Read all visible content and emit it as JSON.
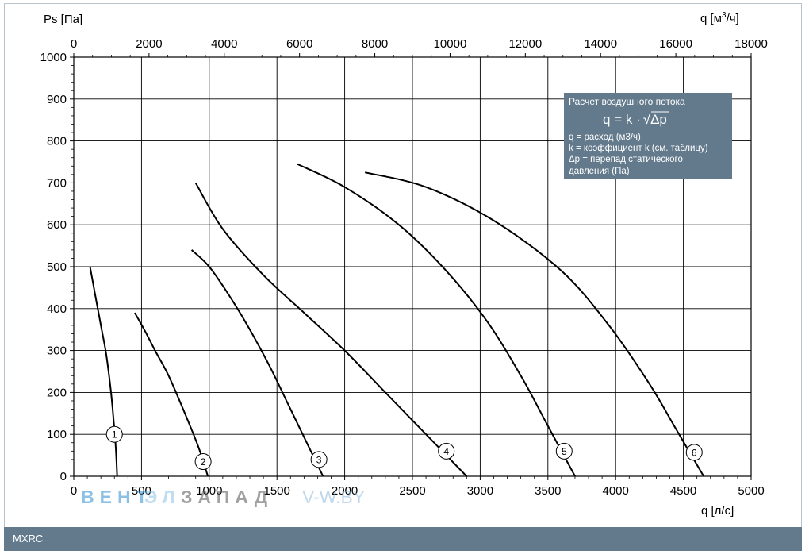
{
  "footer": {
    "model": "MXRC"
  },
  "chart_data": {
    "type": "line",
    "ylabel": "Ps [Па]",
    "xlabel": "q [л/с]",
    "x2label_main": "q [м",
    "x2label_sup": "3",
    "x2label_end": "/ч]",
    "xlim": [
      0,
      5000
    ],
    "ylim": [
      0,
      1000
    ],
    "x2lim": [
      0,
      18000
    ],
    "grid": true,
    "x_ticks": [
      "0",
      "500",
      "1000",
      "1500",
      "2000",
      "2500",
      "3000",
      "3500",
      "4000",
      "4500",
      "5000"
    ],
    "y_ticks": [
      "0",
      "100",
      "200",
      "300",
      "400",
      "500",
      "600",
      "700",
      "800",
      "900",
      "1000"
    ],
    "x2_ticks": [
      "0",
      "2000",
      "4000",
      "6000",
      "8000",
      "10000",
      "12000",
      "14000",
      "16000",
      "18000"
    ],
    "line_color": "#000000",
    "series": [
      {
        "name": "1",
        "points": [
          [
            120,
            500
          ],
          [
            160,
            430
          ],
          [
            200,
            360
          ],
          [
            240,
            290
          ],
          [
            275,
            200
          ],
          [
            295,
            130
          ],
          [
            310,
            70
          ],
          [
            320,
            0
          ]
        ],
        "label_at": [
          300,
          100
        ]
      },
      {
        "name": "2",
        "points": [
          [
            450,
            390
          ],
          [
            520,
            350
          ],
          [
            600,
            300
          ],
          [
            700,
            240
          ],
          [
            820,
            150
          ],
          [
            920,
            70
          ],
          [
            990,
            0
          ]
        ],
        "label_at": [
          955,
          35
        ]
      },
      {
        "name": "3",
        "points": [
          [
            870,
            540
          ],
          [
            1000,
            500
          ],
          [
            1150,
            430
          ],
          [
            1300,
            350
          ],
          [
            1450,
            260
          ],
          [
            1600,
            160
          ],
          [
            1750,
            60
          ],
          [
            1840,
            0
          ]
        ],
        "label_at": [
          1810,
          40
        ]
      },
      {
        "name": "4",
        "points": [
          [
            900,
            700
          ],
          [
            1100,
            590
          ],
          [
            1400,
            480
          ],
          [
            1700,
            390
          ],
          [
            2000,
            300
          ],
          [
            2300,
            200
          ],
          [
            2600,
            100
          ],
          [
            2900,
            0
          ]
        ],
        "label_at": [
          2750,
          60
        ]
      },
      {
        "name": "5",
        "points": [
          [
            1650,
            745
          ],
          [
            2000,
            690
          ],
          [
            2400,
            600
          ],
          [
            2750,
            490
          ],
          [
            3050,
            370
          ],
          [
            3300,
            240
          ],
          [
            3500,
            120
          ],
          [
            3700,
            0
          ]
        ],
        "label_at": [
          3620,
          60
        ]
      },
      {
        "name": "6",
        "points": [
          [
            2150,
            725
          ],
          [
            2600,
            690
          ],
          [
            3100,
            610
          ],
          [
            3600,
            490
          ],
          [
            3950,
            360
          ],
          [
            4250,
            220
          ],
          [
            4450,
            110
          ],
          [
            4650,
            0
          ]
        ],
        "label_at": [
          4580,
          57
        ]
      }
    ]
  },
  "info_box": {
    "title": "Расчет воздушного потока",
    "formula_lhs": "q = k ·",
    "formula_rad": "√",
    "formula_arg": "Δp",
    "line1": "q = расход (м3/ч)",
    "line2": "k = коэффициент k (см. таблицу)",
    "line3": "Δp = перепад статического",
    "line4": "давления (Па)",
    "bg_color": "#637a8d"
  },
  "watermark": {
    "part1": "ВЕНТ",
    "part2": "ЭЛ",
    "part3": "ЗАПАД",
    "part4": "V-W.BY"
  }
}
